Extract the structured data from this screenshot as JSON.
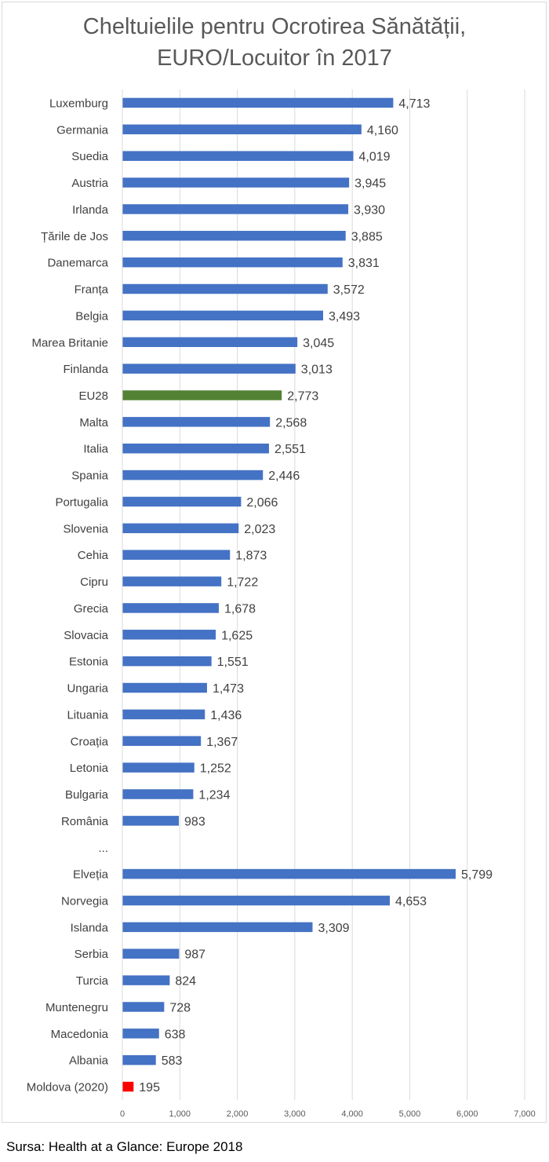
{
  "title_lines": [
    "Cheltuielile pentru Ocrotirea Sănătății,",
    "EURO/Locuitor în 2017"
  ],
  "source": "Sursa: Health at a Glance: Europe 2018",
  "colors": {
    "default": "#4472C4",
    "eu": "#548235",
    "moldova": "#FF0000",
    "grid": "#d9d9d9",
    "text": "#404040",
    "tick": "#595959"
  },
  "chart_data": {
    "type": "bar",
    "orientation": "horizontal",
    "title": "Cheltuielile pentru Ocrotirea Sănătății, EURO/Locuitor în 2017",
    "xlabel": "",
    "ylabel": "",
    "xlim": [
      0,
      7000
    ],
    "xticks": [
      0,
      1000,
      2000,
      3000,
      4000,
      5000,
      6000,
      7000
    ],
    "xtick_labels": [
      "0",
      "1,000",
      "2,000",
      "3,000",
      "4,000",
      "5,000",
      "6,000",
      "7,000"
    ],
    "grid": true,
    "categories": [
      "Luxemburg",
      "Germania",
      "Suedia",
      "Austria",
      "Irlanda",
      "Țările de Jos",
      "Danemarca",
      "Franța",
      "Belgia",
      "Marea Britanie",
      "Finlanda",
      "EU28",
      "Malta",
      "Italia",
      "Spania",
      "Portugalia",
      "Slovenia",
      "Cehia",
      "Cipru",
      "Grecia",
      "Slovacia",
      "Estonia",
      "Ungaria",
      "Lituania",
      "Croația",
      "Letonia",
      "Bulgaria",
      "România",
      "...",
      "Elveția",
      "Norvegia",
      "Islanda",
      "Serbia",
      "Turcia",
      "Muntenegru",
      "Macedonia",
      "Albania",
      "Moldova (2020)"
    ],
    "values": [
      4713,
      4160,
      4019,
      3945,
      3930,
      3885,
      3831,
      3572,
      3493,
      3045,
      3013,
      2773,
      2568,
      2551,
      2446,
      2066,
      2023,
      1873,
      1722,
      1678,
      1625,
      1551,
      1473,
      1436,
      1367,
      1252,
      1234,
      983,
      null,
      5799,
      4653,
      3309,
      987,
      824,
      728,
      638,
      583,
      195
    ],
    "value_labels": [
      "4,713",
      "4,160",
      "4,019",
      "3,945",
      "3,930",
      "3,885",
      "3,831",
      "3,572",
      "3,493",
      "3,045",
      "3,013",
      "2,773",
      "2,568",
      "2,551",
      "2,446",
      "2,066",
      "2,023",
      "1,873",
      "1,722",
      "1,678",
      "1,625",
      "1,551",
      "1,473",
      "1,436",
      "1,367",
      "1,252",
      "1,234",
      "983",
      "",
      "5,799",
      "4,653",
      "3,309",
      "987",
      "824",
      "728",
      "638",
      "583",
      "195"
    ],
    "highlight": {
      "EU28": "eu",
      "Moldova (2020)": "moldova"
    }
  }
}
